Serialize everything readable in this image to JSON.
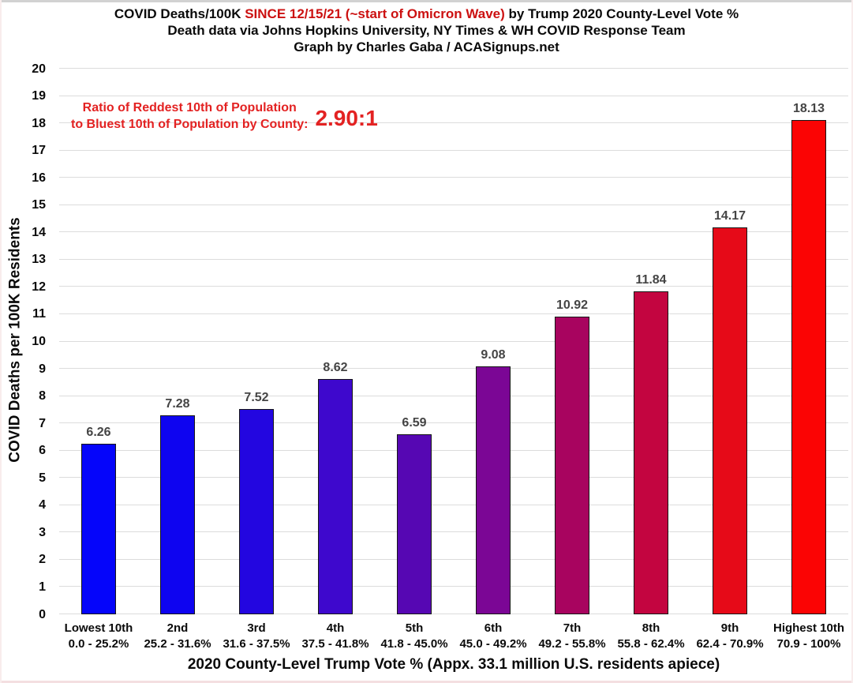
{
  "title": {
    "line1_prefix": "COVID Deaths/100K ",
    "line1_red": "SINCE 12/15/21 (~start of Omicron Wave)",
    "line1_suffix": " by Trump 2020 County-Level Vote %",
    "line2": "Death data via Johns Hopkins University, NY Times & WH COVID Response Team",
    "line3": "Graph by Charles Gaba / ACASignups.net"
  },
  "annotation": {
    "line1": "Ratio of Reddest 10th of Population",
    "line2": "to Bluest 10th of Population by County:",
    "ratio": "2.90:1",
    "color": "#e32222"
  },
  "chart_data": {
    "type": "bar",
    "title": "COVID Deaths/100K SINCE 12/15/21 (~start of Omicron Wave) by Trump 2020 County-Level Vote %",
    "xlabel": "2020 County-Level Trump Vote % (Appx. 33.1 million U.S. residents apiece)",
    "ylabel": "COVID Deaths per 100K Residents",
    "ylim": [
      0,
      20
    ],
    "ytick_step": 1,
    "grid": true,
    "legend": "none",
    "categories": [
      "Lowest 10th",
      "2nd",
      "3rd",
      "4th",
      "5th",
      "6th",
      "7th",
      "8th",
      "9th",
      "Highest 10th"
    ],
    "category_ranges": [
      "0.0 - 25.2%",
      "25.2 - 31.6%",
      "31.6 - 37.5%",
      "37.5 - 41.8%",
      "41.8 - 45.0%",
      "45.0 - 49.2%",
      "49.2 - 55.8%",
      "55.8 - 62.4%",
      "62.4 - 70.9%",
      "70.9 - 100%"
    ],
    "values": [
      6.26,
      7.28,
      7.52,
      8.62,
      6.59,
      9.08,
      10.92,
      11.84,
      14.17,
      18.13
    ],
    "bar_colors": [
      "#0505fa",
      "#0e04f0",
      "#2306e0",
      "#3e08cd",
      "#5607b3",
      "#7b0695",
      "#a8045f",
      "#c30540",
      "#e60a18",
      "#fb0404"
    ],
    "bar_border_color": "#161616",
    "value_label_color": "#444444",
    "gridline_color": "#dcdcdc",
    "title_accent_color": "#cc1111"
  }
}
